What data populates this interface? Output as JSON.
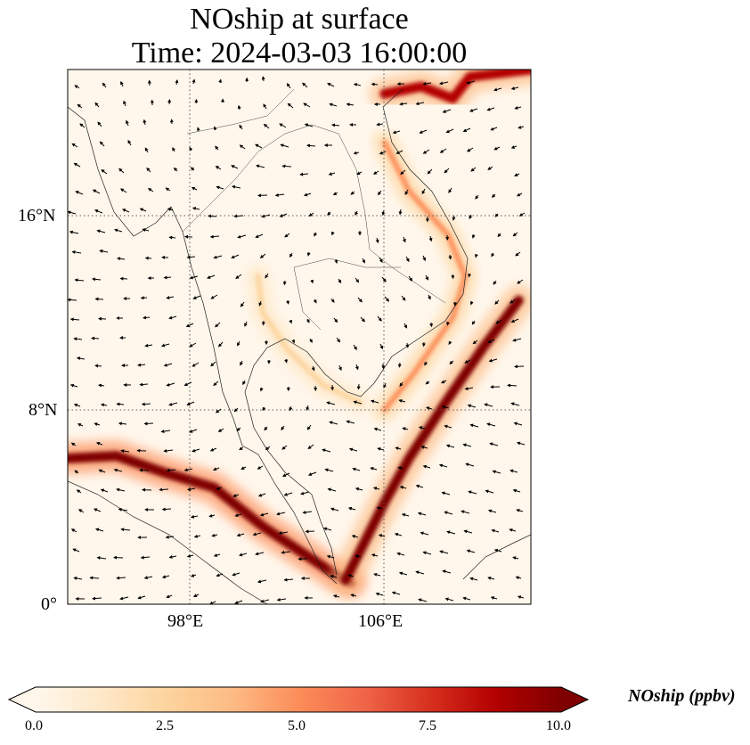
{
  "title": {
    "line1": "NOship at surface",
    "line2": "Time: 2024-03-03 16:00:00"
  },
  "map": {
    "projection": "PlateCarree",
    "lon_range": [
      93,
      112
    ],
    "lat_range": [
      0,
      22
    ],
    "gridlines": {
      "style": "dotted",
      "color": "#555555",
      "lons": [
        98,
        106
      ],
      "lats": [
        8,
        16
      ]
    },
    "lon_labels": [
      "98°E",
      "106°E"
    ],
    "lat_labels": [
      "16°N",
      "8°N",
      "0°"
    ],
    "field": "NOship",
    "units": "ppbv",
    "shipping_lanes": [
      {
        "name": "strait-of-malacca",
        "peak": 10.0,
        "path": [
          [
            93,
            6.0
          ],
          [
            95,
            6.1
          ],
          [
            97,
            5.4
          ],
          [
            99,
            4.8
          ],
          [
            101,
            3.2
          ],
          [
            102.5,
            2.2
          ],
          [
            104,
            1.2
          ],
          [
            104.6,
            0.9
          ]
        ]
      },
      {
        "name": "singapore-to-south-china-sea",
        "peak": 9.5,
        "path": [
          [
            104.4,
            1.0
          ],
          [
            105.2,
            2.6
          ],
          [
            106,
            4.2
          ],
          [
            107,
            6.0
          ],
          [
            108.5,
            8.3
          ],
          [
            110,
            10.5
          ],
          [
            111.5,
            12.5
          ]
        ]
      },
      {
        "name": "vietnam-coast",
        "peak": 5.0,
        "path": [
          [
            106,
            8.0
          ],
          [
            107.2,
            9.5
          ],
          [
            108.8,
            11.8
          ],
          [
            109.3,
            13.5
          ],
          [
            108.6,
            15.2
          ],
          [
            107,
            17.0
          ],
          [
            106,
            19.0
          ]
        ]
      },
      {
        "name": "gulf-of-tonkin",
        "peak": 8.5,
        "path": [
          [
            106,
            21.0
          ],
          [
            107.5,
            21.3
          ],
          [
            108.8,
            20.8
          ],
          [
            109.5,
            21.7
          ],
          [
            112,
            22.0
          ]
        ]
      },
      {
        "name": "gulf-of-thailand-arc",
        "peak": 3.0,
        "path": [
          [
            100.8,
            13.5
          ],
          [
            101,
            12.0
          ],
          [
            102,
            10.5
          ],
          [
            103.5,
            9.0
          ],
          [
            105,
            8.3
          ]
        ]
      }
    ],
    "wind_vectors": "quiver arrows over full domain (black)"
  },
  "colorbar": {
    "cmap": "OrRd",
    "min": 0.0,
    "max": 10.0,
    "extend": "both",
    "colors": [
      "#fff7ec",
      "#fee8c8",
      "#fdd49e",
      "#fdbb84",
      "#fc8d59",
      "#ef6548",
      "#d7301f",
      "#b30000",
      "#7f0000"
    ],
    "ticks": [
      "0.0",
      "2.5",
      "5.0",
      "7.5",
      "10.0"
    ],
    "label": "NOship (ppbv)"
  }
}
